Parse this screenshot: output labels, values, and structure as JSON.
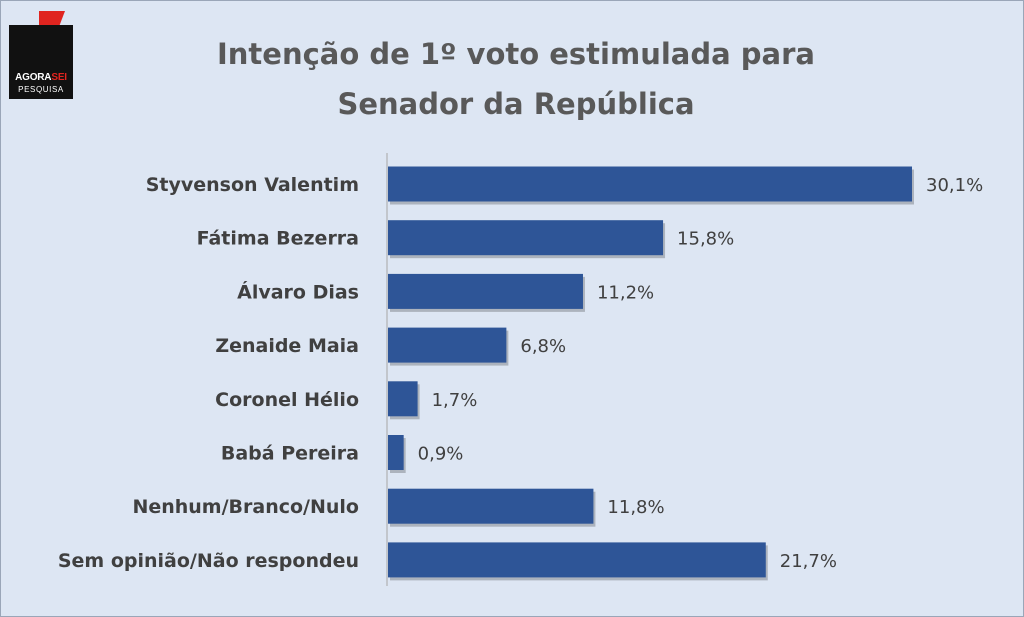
{
  "logo": {
    "line1_a": "AGORA",
    "line1_b": "SEI",
    "line2": "PESQUISA"
  },
  "chart_data": {
    "type": "bar",
    "orientation": "horizontal",
    "title_line1": "Intenção de 1º voto estimulada para",
    "title_line2": "Senador da República",
    "categories": [
      "Styvenson Valentim",
      "Fátima Bezerra",
      "Álvaro Dias",
      "Zenaide Maia",
      "Coronel Hélio",
      "Babá Pereira",
      "Nenhum/Branco/Nulo",
      "Sem opinião/Não respondeu"
    ],
    "values": [
      30.1,
      15.8,
      11.2,
      6.8,
      1.7,
      0.9,
      11.8,
      21.7
    ],
    "value_labels": [
      "30,1%",
      "15,8%",
      "11,2%",
      "6,8%",
      "1,7%",
      "0,9%",
      "11,8%",
      "21,7%"
    ],
    "unit": "%",
    "bar_color": "#2e5597",
    "xlim": [
      0,
      30.1
    ],
    "grid": false,
    "legend": "none"
  }
}
